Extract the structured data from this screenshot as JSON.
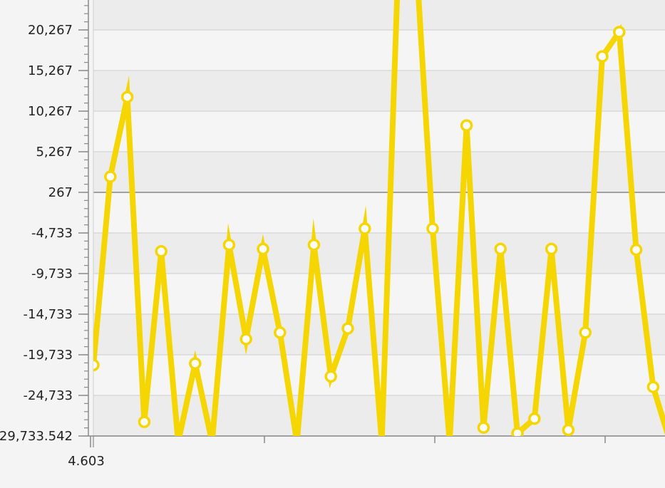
{
  "chart_data": {
    "type": "line",
    "y_ticks": [
      "-29,733.542",
      "-24,733",
      "-19,733",
      "-14,733",
      "-9,733",
      "-4,733",
      "267",
      "5,267",
      "10,267",
      "15,267",
      "20,267"
    ],
    "y_tick_values": [
      -29733.542,
      -24733,
      -19733,
      -14733,
      -9733,
      -4733,
      267,
      5267,
      10267,
      15267,
      20267
    ],
    "x_ticks": [
      "4.603"
    ],
    "x_tick_values": [
      4.603
    ],
    "ylim": [
      -29733.542,
      24000
    ],
    "xlim": [
      4.5,
      38.0
    ],
    "zero_line": 267,
    "series": [
      {
        "color": "#f5d600",
        "x": [
          4.6,
          5.6,
          6.6,
          7.6,
          8.6,
          9.6,
          10.6,
          11.6,
          12.6,
          13.6,
          14.6,
          15.6,
          16.6,
          17.6,
          18.6,
          19.6,
          20.6,
          21.6,
          22.6,
          23.6,
          24.6,
          25.6,
          26.6,
          27.6,
          28.6,
          29.6,
          30.6,
          31.6,
          32.6,
          33.6,
          34.6,
          35.6,
          36.6,
          37.6,
          38.6
        ],
        "y": [
          -21000,
          2200,
          12000,
          -28000,
          -7000,
          -30500,
          -20800,
          -30500,
          -6200,
          -17800,
          -6700,
          -17000,
          -30500,
          -6200,
          -22400,
          -16500,
          -4200,
          -30500,
          30000,
          30000,
          -4200,
          -30500,
          8500,
          -28700,
          -6700,
          -29400,
          -27600,
          -6700,
          -29000,
          -17000,
          17000,
          20000,
          -6800,
          -23700,
          -30500
        ]
      }
    ]
  }
}
